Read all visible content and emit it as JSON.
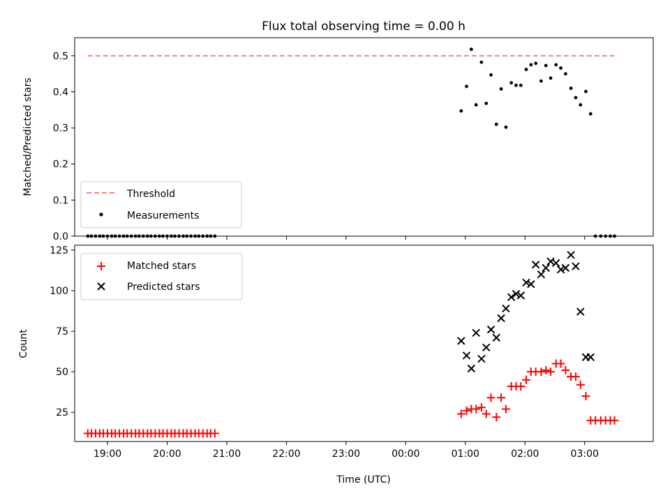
{
  "figure": {
    "title": "Flux total observing time = 0.00 h",
    "shared_xlabel": "Time (UTC)"
  },
  "colors": {
    "threshold": "#f08080",
    "measurements": "#000000",
    "matched": "#ff0000",
    "predicted": "#000000"
  },
  "chart_data": [
    {
      "type": "scatter",
      "panel": "top",
      "title": "Flux total observing time = 0.00 h",
      "xlabel": "",
      "ylabel": "Matched/Predicted stars",
      "xlim": [
        -5.55,
        4.15
      ],
      "ylim": [
        0,
        0.55
      ],
      "x_unit": "hours relative to 00:00 UTC",
      "x_ticks": [
        -5,
        -4,
        -3,
        -2,
        -1,
        0,
        1,
        2,
        3
      ],
      "x_ticklabels": [
        "",
        "",
        "",
        "",
        "",
        "",
        "",
        "",
        ""
      ],
      "y_ticks": [
        0.0,
        0.1,
        0.2,
        0.3,
        0.4,
        0.5
      ],
      "y_ticklabels": [
        "0.0",
        "0.1",
        "0.2",
        "0.3",
        "0.4",
        "0.5"
      ],
      "grid": false,
      "legend": {
        "placement": "lower-left",
        "entries": [
          {
            "label": "Threshold",
            "marker": "dashed-line",
            "color": "#f08080"
          },
          {
            "label": "Measurements",
            "marker": "dot",
            "color": "#000000"
          }
        ]
      },
      "series": [
        {
          "name": "Threshold",
          "kind": "dashed-line",
          "x": [
            -5.33,
            3.5
          ],
          "y": [
            0.5,
            0.5
          ]
        },
        {
          "name": "Measurements",
          "kind": "dot",
          "x": [
            -5.33,
            -5.27,
            -5.2,
            -5.13,
            -5.07,
            -5.0,
            -4.93,
            -4.87,
            -4.8,
            -4.73,
            -4.67,
            -4.6,
            -4.53,
            -4.47,
            -4.4,
            -4.33,
            -4.27,
            -4.2,
            -4.13,
            -4.07,
            -4.0,
            -3.93,
            -3.87,
            -3.8,
            -3.73,
            -3.67,
            -3.6,
            -3.53,
            -3.47,
            -3.4,
            -3.33,
            -3.27,
            -3.2,
            0.93,
            1.02,
            1.1,
            1.18,
            1.27,
            1.35,
            1.43,
            1.52,
            1.6,
            1.68,
            1.77,
            1.85,
            1.93,
            2.02,
            2.1,
            2.18,
            2.27,
            2.35,
            2.43,
            2.52,
            2.6,
            2.68,
            2.77,
            2.85,
            2.93,
            3.02,
            3.1,
            3.18,
            3.27,
            3.35,
            3.43,
            3.5
          ],
          "y": [
            0,
            0,
            0,
            0,
            0,
            0,
            0,
            0,
            0,
            0,
            0,
            0,
            0,
            0,
            0,
            0,
            0,
            0,
            0,
            0,
            0,
            0,
            0,
            0,
            0,
            0,
            0,
            0,
            0,
            0,
            0,
            0,
            0,
            0.347,
            0.415,
            0.518,
            0.364,
            0.482,
            0.368,
            0.447,
            0.31,
            0.408,
            0.302,
            0.425,
            0.418,
            0.418,
            0.462,
            0.475,
            0.479,
            0.43,
            0.473,
            0.438,
            0.475,
            0.466,
            0.45,
            0.41,
            0.384,
            0.364,
            0.401,
            0.339,
            0,
            0,
            0,
            0,
            0
          ]
        }
      ]
    },
    {
      "type": "scatter",
      "panel": "bottom",
      "title": "",
      "xlabel": "Time (UTC)",
      "ylabel": "Count",
      "xlim": [
        -5.55,
        4.15
      ],
      "ylim": [
        7,
        128
      ],
      "x_unit": "hours relative to 00:00 UTC",
      "x_ticks": [
        -5,
        -4,
        -3,
        -2,
        -1,
        0,
        1,
        2,
        3
      ],
      "x_ticklabels": [
        "19:00",
        "20:00",
        "21:00",
        "22:00",
        "23:00",
        "00:00",
        "01:00",
        "02:00",
        "03:00"
      ],
      "y_ticks": [
        25,
        50,
        75,
        100,
        125
      ],
      "y_ticklabels": [
        "25",
        "50",
        "75",
        "100",
        "125"
      ],
      "grid": false,
      "legend": {
        "placement": "upper-left",
        "entries": [
          {
            "label": "Matched stars",
            "marker": "plus",
            "color": "#ff0000"
          },
          {
            "label": "Predicted stars",
            "marker": "x",
            "color": "#000000"
          }
        ]
      },
      "series": [
        {
          "name": "Matched stars",
          "kind": "plus",
          "x": [
            -5.33,
            -5.27,
            -5.2,
            -5.13,
            -5.07,
            -5.0,
            -4.93,
            -4.87,
            -4.8,
            -4.73,
            -4.67,
            -4.6,
            -4.53,
            -4.47,
            -4.4,
            -4.33,
            -4.27,
            -4.2,
            -4.13,
            -4.07,
            -4.0,
            -3.93,
            -3.87,
            -3.8,
            -3.73,
            -3.67,
            -3.6,
            -3.53,
            -3.47,
            -3.4,
            -3.33,
            -3.27,
            -3.2,
            0.93,
            1.02,
            1.1,
            1.18,
            1.27,
            1.35,
            1.43,
            1.52,
            1.6,
            1.68,
            1.77,
            1.85,
            1.93,
            2.02,
            2.1,
            2.18,
            2.27,
            2.35,
            2.43,
            2.52,
            2.6,
            2.68,
            2.77,
            2.85,
            2.93,
            3.02,
            3.1,
            3.18,
            3.27,
            3.35,
            3.43,
            3.5
          ],
          "y": [
            12,
            12,
            12,
            12,
            12,
            12,
            12,
            12,
            12,
            12,
            12,
            12,
            12,
            12,
            12,
            12,
            12,
            12,
            12,
            12,
            12,
            12,
            12,
            12,
            12,
            12,
            12,
            12,
            12,
            12,
            12,
            12,
            12,
            24,
            26,
            27,
            27,
            28,
            24,
            34,
            22,
            34,
            27,
            41,
            41,
            41,
            45,
            50,
            50,
            50,
            51,
            50,
            55,
            55,
            51,
            47,
            47,
            42,
            35,
            20,
            20,
            20,
            20,
            20,
            20
          ]
        },
        {
          "name": "Predicted stars",
          "kind": "x",
          "x": [
            0.93,
            1.02,
            1.1,
            1.18,
            1.27,
            1.35,
            1.43,
            1.52,
            1.6,
            1.68,
            1.77,
            1.85,
            1.93,
            2.02,
            2.1,
            2.18,
            2.27,
            2.35,
            2.43,
            2.52,
            2.6,
            2.68,
            2.77,
            2.85,
            2.93,
            3.02,
            3.1
          ],
          "y": [
            69,
            60,
            52,
            74,
            58,
            65,
            76,
            71,
            83,
            89,
            96,
            98,
            97,
            105,
            104,
            116,
            110,
            114,
            118,
            117,
            113,
            114,
            122,
            115,
            87,
            59,
            59
          ]
        }
      ]
    }
  ]
}
